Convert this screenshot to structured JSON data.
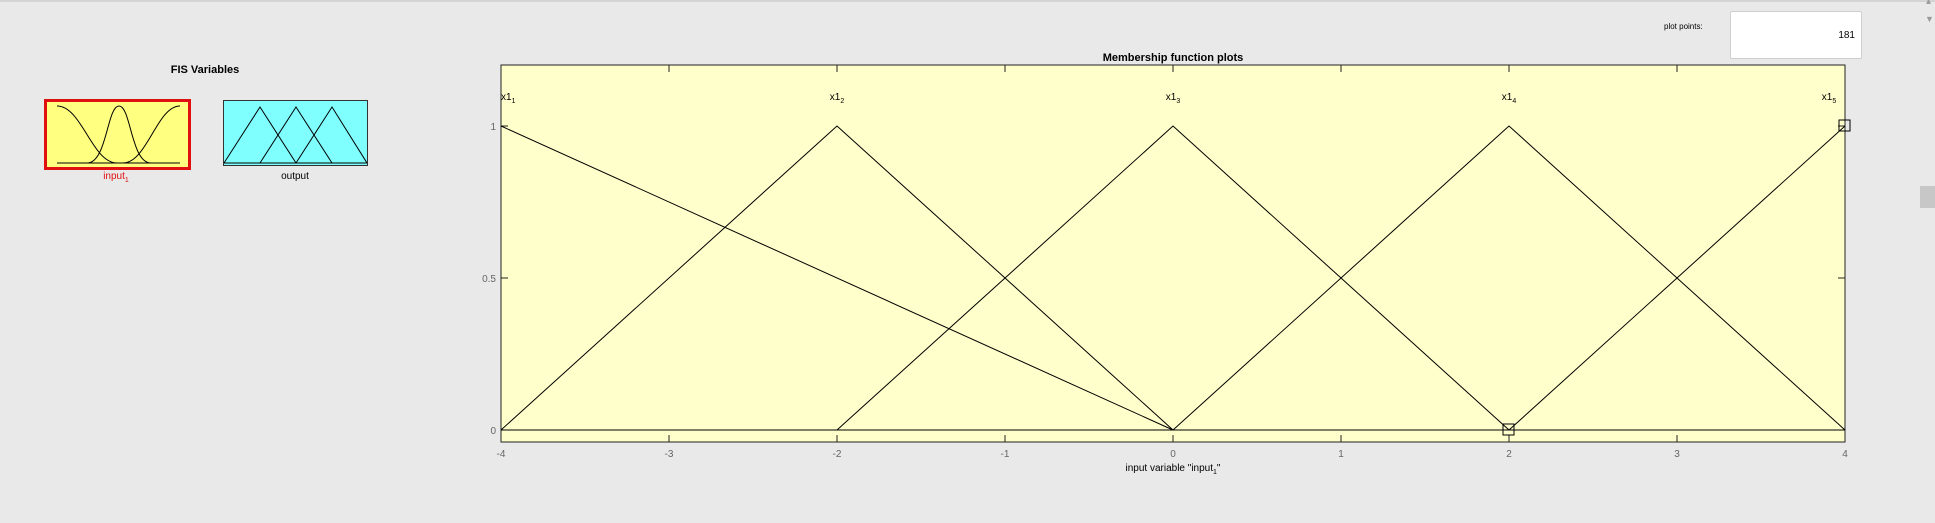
{
  "fis_variables": {
    "title": "FIS Variables",
    "input": {
      "name": "input",
      "subscript": "1",
      "selected": true
    },
    "output": {
      "name": "output"
    }
  },
  "plot_points": {
    "label": "plot points:",
    "value": "181"
  },
  "colors": {
    "input_fill": "#ffff80",
    "output_fill": "#80ffff",
    "selected_border": "#e01010",
    "plot_bg": "#ffffcc"
  },
  "chart_data": {
    "type": "line",
    "title": "Membership function plots",
    "xlabel_prefix": "input variable \"input",
    "xlabel_subscript": "1",
    "xlabel_suffix": "\"",
    "xlim": [
      -4,
      4
    ],
    "ylim": [
      0,
      1
    ],
    "xticks": [
      -4,
      -3,
      -2,
      -1,
      0,
      1,
      2,
      3,
      4
    ],
    "yticks": [
      0,
      0.5,
      1
    ],
    "series": [
      {
        "name": "x1",
        "subscript": "1",
        "peak": -4,
        "points": [
          [
            -4,
            1
          ],
          [
            0,
            0
          ]
        ]
      },
      {
        "name": "x1",
        "subscript": "2",
        "peak": -2,
        "points": [
          [
            -4,
            0
          ],
          [
            -2,
            1
          ],
          [
            0,
            0
          ]
        ]
      },
      {
        "name": "x1",
        "subscript": "3",
        "peak": 0,
        "points": [
          [
            -2,
            0
          ],
          [
            0,
            1
          ],
          [
            2,
            0
          ]
        ]
      },
      {
        "name": "x1",
        "subscript": "4",
        "peak": 2,
        "points": [
          [
            0,
            0
          ],
          [
            2,
            1
          ],
          [
            4,
            0
          ]
        ]
      },
      {
        "name": "x1",
        "subscript": "5",
        "peak": 4,
        "points": [
          [
            2,
            0
          ],
          [
            4,
            1
          ]
        ]
      }
    ],
    "markers": [
      [
        2,
        0
      ],
      [
        4,
        1
      ]
    ]
  }
}
